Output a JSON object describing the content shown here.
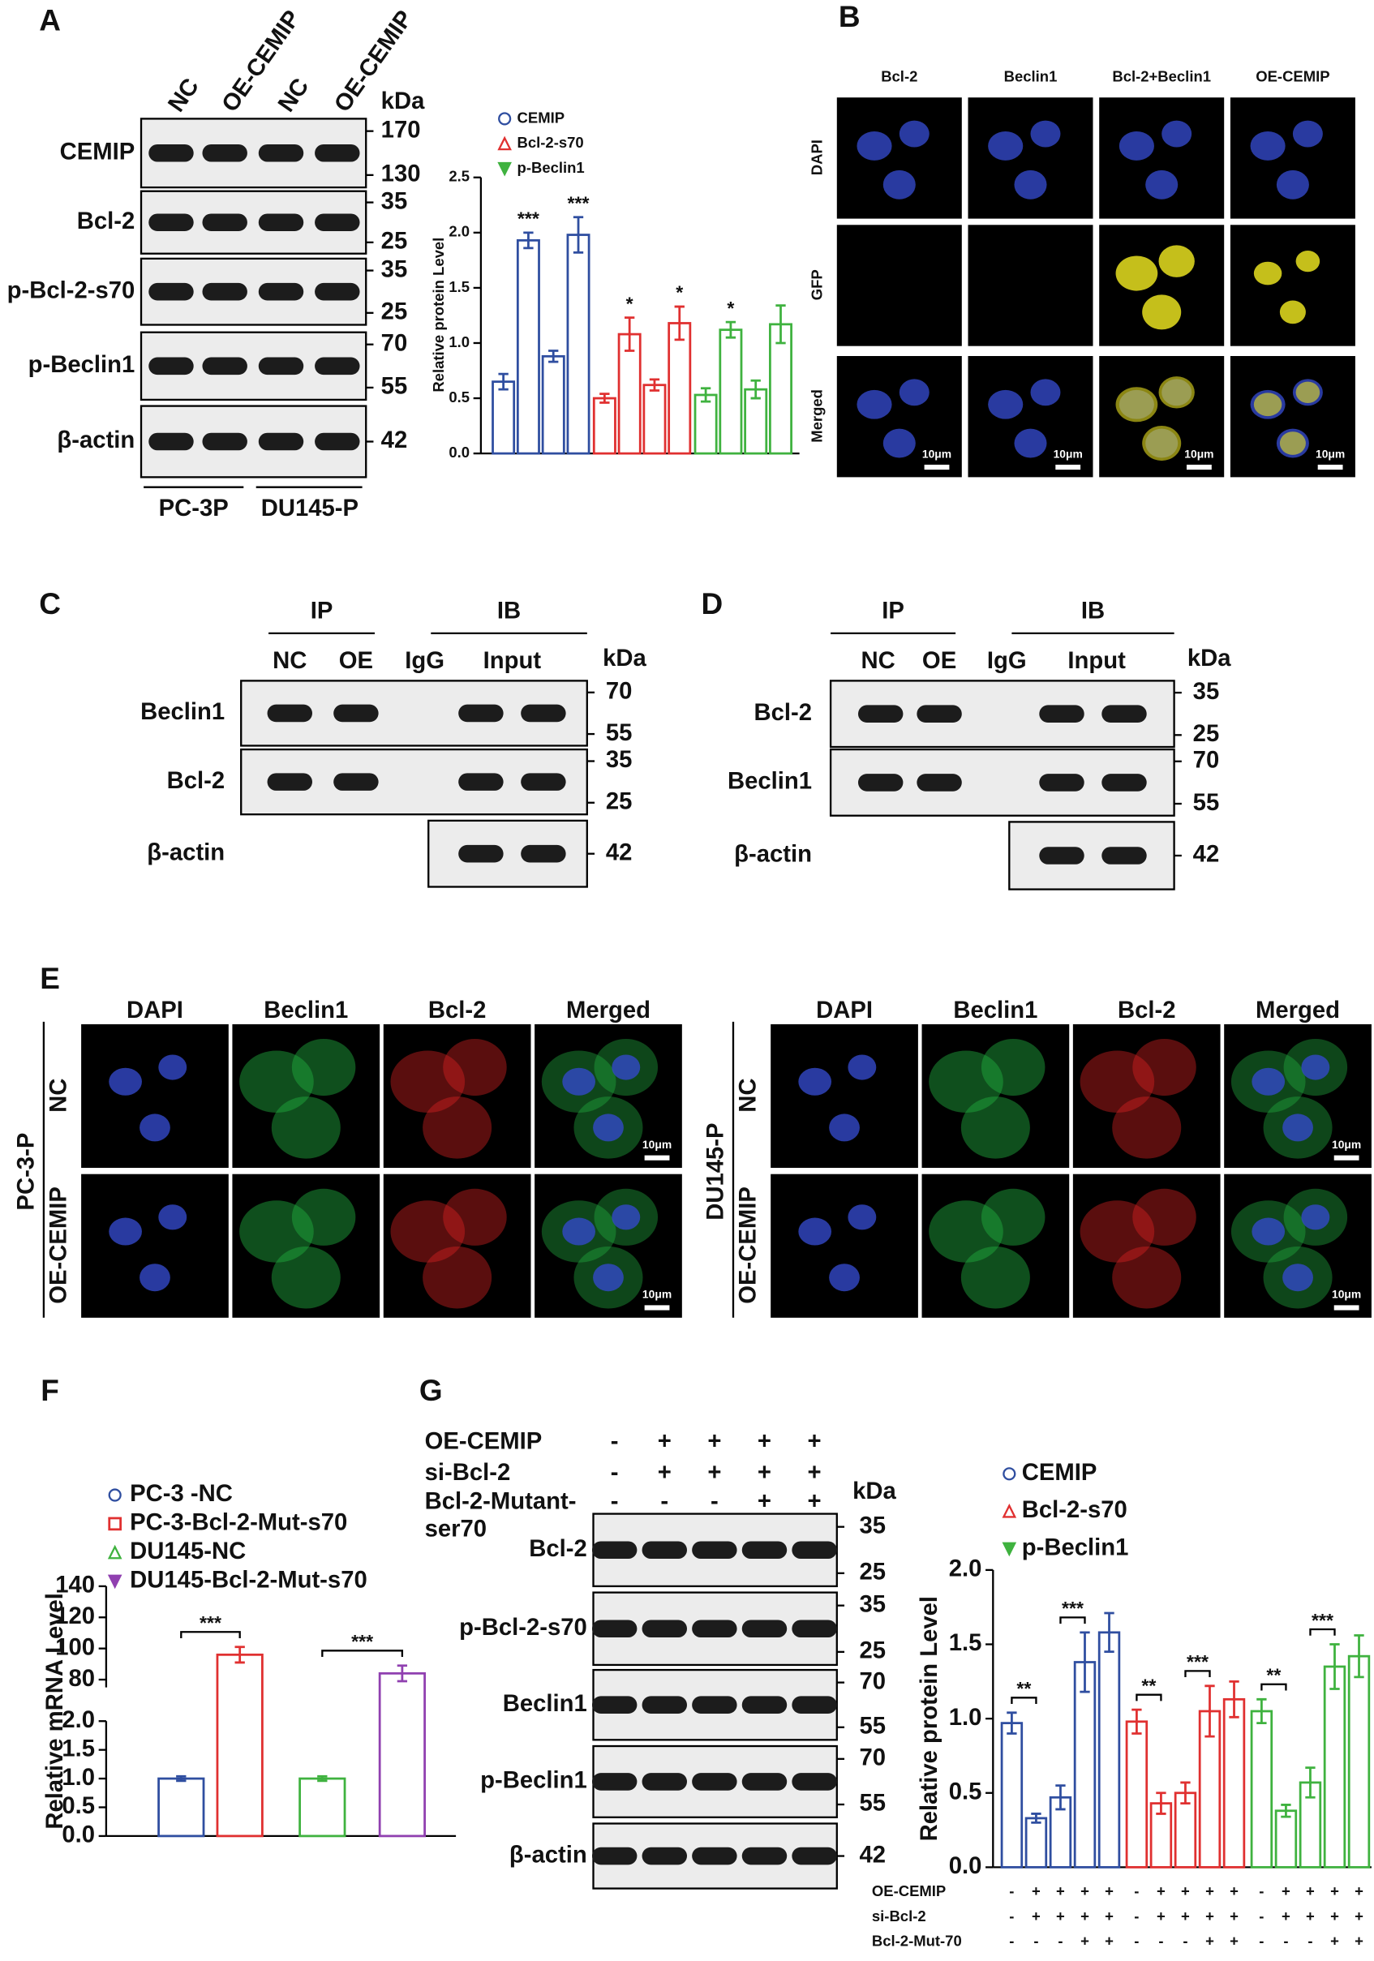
{
  "panel_letters": [
    "A",
    "B",
    "C",
    "D",
    "E",
    "F",
    "G"
  ],
  "blot_a": {
    "columns": [
      "NC",
      "OE-CEMIP",
      "NC",
      "OE-CEMIP"
    ],
    "unit": "kDa",
    "groups": [
      "PC-3P",
      "DU145-P"
    ],
    "rows": [
      {
        "label": "CEMIP",
        "markers": [
          170,
          130
        ]
      },
      {
        "label": "Bcl-2",
        "markers": [
          35,
          25
        ]
      },
      {
        "label": "p-Bcl-2-s70",
        "markers": [
          35,
          25
        ]
      },
      {
        "label": "p-Beclin1",
        "markers": [
          70,
          55
        ]
      },
      {
        "label": "β-actin",
        "markers": [
          42
        ]
      }
    ]
  },
  "panel_b": {
    "columns": [
      "Bcl-2",
      "Beclin1",
      "Bcl-2+Beclin1",
      "OE-CEMIP"
    ],
    "rows": [
      "DAPI",
      "GFP",
      "Merged"
    ],
    "scale": "10μm"
  },
  "blot_c": {
    "headers": [
      "IP",
      "IB"
    ],
    "columns": [
      "NC",
      "OE",
      "IgG",
      "Input"
    ],
    "unit": "kDa",
    "rows": [
      {
        "label": "Beclin1",
        "markers": [
          70,
          55
        ]
      },
      {
        "label": "Bcl-2",
        "markers": [
          35,
          25
        ]
      },
      {
        "label": "β-actin",
        "markers": [
          42
        ]
      }
    ]
  },
  "blot_d": {
    "headers": [
      "IP",
      "IB"
    ],
    "columns": [
      "NC",
      "OE",
      "IgG",
      "Input"
    ],
    "unit": "kDa",
    "rows": [
      {
        "label": "Bcl-2",
        "markers": [
          35,
          25
        ]
      },
      {
        "label": "Beclin1",
        "markers": [
          70,
          55
        ]
      },
      {
        "label": "β-actin",
        "markers": [
          42
        ]
      }
    ]
  },
  "panel_e": [
    {
      "cell": "PC-3-P",
      "columns": [
        "DAPI",
        "Beclin1",
        "Bcl-2",
        "Merged"
      ],
      "rows": [
        "NC",
        "OE-CEMIP"
      ],
      "scale": "10μm"
    },
    {
      "cell": "DU145-P",
      "columns": [
        "DAPI",
        "Beclin1",
        "Bcl-2",
        "Merged"
      ],
      "rows": [
        "NC",
        "OE-CEMIP"
      ],
      "scale": "10μm"
    }
  ],
  "blot_g": {
    "conditions": [
      {
        "lines": [
          "OE-CEMIP"
        ],
        "signs": [
          "-",
          "+",
          "+",
          "+",
          "+"
        ]
      },
      {
        "lines": [
          "si-Bcl-2"
        ],
        "signs": [
          "-",
          "+",
          "+",
          "+",
          "+"
        ]
      },
      {
        "lines": [
          "Bcl-2-Mutant-",
          "ser70"
        ],
        "signs": [
          "-",
          "-",
          "-",
          "+",
          "+"
        ]
      }
    ],
    "unit": "kDa",
    "rows": [
      {
        "label": "Bcl-2",
        "markers": [
          35,
          25
        ]
      },
      {
        "label": "p-Bcl-2-s70",
        "markers": [
          35,
          25
        ]
      },
      {
        "label": "Beclin1",
        "markers": [
          70,
          55
        ]
      },
      {
        "label": "p-Beclin1",
        "markers": [
          70,
          55
        ]
      },
      {
        "label": "β-actin",
        "markers": [
          42
        ]
      }
    ]
  },
  "chart_data": [
    {
      "type": "bar",
      "y_label": "Relative protein Level",
      "ylim": [
        0,
        2.5
      ],
      "yticks": [
        {
          "value": 0,
          "label": "0.0"
        },
        0.5,
        {
          "value": 1,
          "label": "1.0"
        },
        1.5,
        {
          "value": 2,
          "label": "2.0"
        },
        2.5
      ],
      "categories": [
        null,
        null,
        null,
        null
      ],
      "series": [
        {
          "name": "CEMIP",
          "color": "#2f4ea0",
          "marker": "circle",
          "values": [
            0.65,
            1.93,
            0.88,
            1.98
          ],
          "errors": [
            0.07,
            0.07,
            0.05,
            0.16
          ],
          "annotations": [
            null,
            "***",
            null,
            "***"
          ]
        },
        {
          "name": "Bcl-2-s70",
          "color": "#e03030",
          "marker": "triangle",
          "values": [
            0.5,
            1.08,
            0.62,
            1.18
          ],
          "errors": [
            0.04,
            0.15,
            0.05,
            0.15
          ],
          "annotations": [
            null,
            "*",
            null,
            "*"
          ]
        },
        {
          "name": "p-Beclin1",
          "color": "#3fb23f",
          "marker": "triangle-down",
          "values": [
            0.53,
            1.12,
            0.58,
            1.17
          ],
          "errors": [
            0.06,
            0.07,
            0.08,
            0.17
          ],
          "annotations": [
            null,
            "*",
            null,
            null
          ]
        }
      ]
    },
    {
      "type": "bar",
      "y_label": "Relative mRNA Level",
      "ylim": [
        0,
        140
      ],
      "ybreak": [
        2,
        75
      ],
      "yticks": [
        {
          "value": 0,
          "label": "0.0"
        },
        0.5,
        {
          "value": 1,
          "label": "1.0"
        },
        1.5,
        {
          "value": 2,
          "label": "2.0"
        },
        80,
        100,
        120,
        140
      ],
      "categories": [
        null,
        null,
        null,
        null
      ],
      "values": [
        1.0,
        96,
        1.0,
        84
      ],
      "errors": [
        0.04,
        5,
        0.04,
        5
      ],
      "colors": [
        "#2f4ea0",
        "#e03030",
        "#3fb23f",
        "#9040b0"
      ],
      "markers": [
        "circle",
        "square",
        "triangle",
        "triangle-down"
      ],
      "legend": [
        "PC-3 -NC",
        "PC-3-Bcl-2-Mut-s70",
        "DU145-NC",
        "DU145-Bcl-2-Mut-s70"
      ],
      "annotations": [
        null,
        "***",
        null,
        "***"
      ],
      "brackets": true
    },
    {
      "type": "bar",
      "y_label": "Relative protein Level",
      "ylim": [
        0,
        2.0
      ],
      "yticks": [
        {
          "value": 0,
          "label": "0.0"
        },
        0.5,
        {
          "value": 1,
          "label": "1.0"
        },
        1.5,
        {
          "value": 2,
          "label": "2.0"
        }
      ],
      "categories": [
        null,
        null,
        null,
        null,
        null
      ],
      "brackets": true,
      "series": [
        {
          "name": "CEMIP",
          "color": "#2f4ea0",
          "marker": "circle",
          "values": [
            0.97,
            0.33,
            0.47,
            1.38,
            1.58
          ],
          "errors": [
            0.07,
            0.03,
            0.08,
            0.2,
            0.13
          ],
          "annotations": [
            null,
            "**",
            null,
            "***",
            null
          ]
        },
        {
          "name": "Bcl-2-s70",
          "color": "#e03030",
          "marker": "triangle",
          "values": [
            0.98,
            0.43,
            0.5,
            1.05,
            1.13
          ],
          "errors": [
            0.08,
            0.07,
            0.07,
            0.17,
            0.12
          ],
          "annotations": [
            null,
            "**",
            null,
            "***",
            null
          ]
        },
        {
          "name": "p-Beclin1",
          "color": "#3fb23f",
          "marker": "triangle-down",
          "values": [
            1.05,
            0.38,
            0.57,
            1.35,
            1.42
          ],
          "errors": [
            0.08,
            0.04,
            0.1,
            0.15,
            0.14
          ],
          "annotations": [
            null,
            "**",
            null,
            "***",
            null
          ]
        }
      ],
      "conditions": [
        {
          "label": "OE-CEMIP",
          "signs": [
            "-",
            "+",
            "+",
            "+",
            "+",
            "-",
            "+",
            "+",
            "+",
            "+",
            "-",
            "+",
            "+",
            "+",
            "+"
          ]
        },
        {
          "label": "si-Bcl-2",
          "signs": [
            "-",
            "+",
            "+",
            "+",
            "+",
            "-",
            "+",
            "+",
            "+",
            "+",
            "-",
            "+",
            "+",
            "+",
            "+"
          ]
        },
        {
          "label": "Bcl-2-Mut-70",
          "signs": [
            "-",
            "-",
            "-",
            "+",
            "+",
            "-",
            "-",
            "-",
            "+",
            "+",
            "-",
            "-",
            "-",
            "+",
            "+"
          ]
        }
      ]
    }
  ]
}
